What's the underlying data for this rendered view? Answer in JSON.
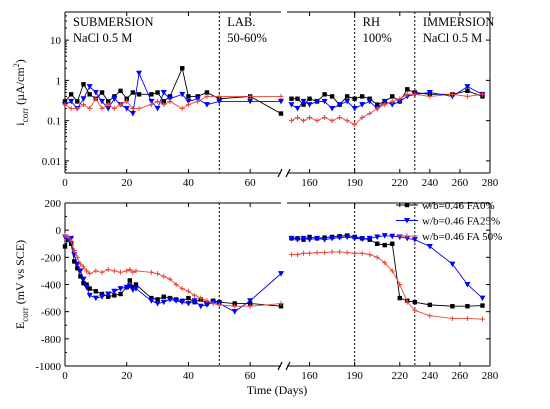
{
  "chart_data": [
    {
      "type": "scatter",
      "panel": "top",
      "ylabel": "i_corr (µA/cm²)",
      "ylabel_main": "i",
      "ylabel_sub": "corr",
      "ylabel_unit": "(µA/cm",
      "ylabel_sup": "2",
      "ylabel_close": ")",
      "yscale": "log",
      "ylim": [
        0.005,
        50
      ],
      "yticks": [
        {
          "value": 0.01,
          "label": "0.01"
        },
        {
          "value": 0.1,
          "label": "0.1"
        },
        {
          "value": 1,
          "label": "1"
        },
        {
          "value": 10,
          "label": "10"
        }
      ],
      "xsegments": [
        {
          "xlim": [
            0,
            70
          ],
          "ticks": [
            0,
            20,
            40,
            60
          ]
        },
        {
          "xlim": [
            145,
            280
          ],
          "ticks": [
            160,
            190,
            220,
            240,
            260,
            280
          ]
        }
      ],
      "xtick_labels": {
        "0": "0",
        "20": "20",
        "40": "40",
        "60": "60",
        "160": "160",
        "190": "190",
        "220": "220",
        "240": "240",
        "260": "260",
        "280": "280"
      },
      "phase_boundaries": [
        50,
        190,
        230
      ],
      "phases": [
        {
          "line1": "SUBMERSION",
          "line2": "NaCl 0.5 M"
        },
        {
          "line1": "LAB.",
          "line2": "50-60%"
        },
        {
          "line1": "RH",
          "line2": "100%"
        },
        {
          "line1": "IMMERSION",
          "line2": "NaCl 0.5 M"
        }
      ],
      "series": [
        {
          "legend": "w/b=0.46 FA0%",
          "color": "#000000",
          "marker": "square",
          "x": [
            0,
            2,
            4,
            6,
            8,
            10,
            12,
            14,
            16,
            18,
            20,
            22,
            24,
            28,
            30,
            32,
            34,
            38,
            40,
            43,
            46,
            50,
            60,
            70,
            148,
            152,
            156,
            160,
            165,
            170,
            175,
            180,
            185,
            190,
            195,
            200,
            205,
            210,
            215,
            220,
            225,
            230,
            240,
            255,
            265,
            275
          ],
          "y": [
            0.3,
            0.45,
            0.3,
            0.8,
            0.45,
            0.35,
            0.5,
            0.3,
            0.4,
            0.55,
            0.35,
            0.5,
            0.45,
            0.45,
            0.5,
            0.3,
            0.4,
            2.0,
            0.4,
            0.4,
            0.5,
            0.35,
            0.4,
            0.15,
            0.35,
            0.35,
            0.25,
            0.35,
            0.3,
            0.45,
            0.4,
            0.25,
            0.4,
            0.35,
            0.4,
            0.35,
            0.25,
            0.3,
            0.4,
            0.3,
            0.6,
            0.5,
            0.45,
            0.45,
            0.55,
            0.4
          ]
        },
        {
          "legend": "w/b=0.46 FA25%",
          "color": "#0000ff",
          "marker": "triangle-down",
          "x": [
            0,
            2,
            4,
            6,
            8,
            10,
            12,
            14,
            16,
            18,
            20,
            22,
            24,
            28,
            30,
            32,
            34,
            38,
            40,
            43,
            46,
            50,
            60,
            70,
            148,
            152,
            156,
            160,
            165,
            170,
            175,
            180,
            185,
            190,
            195,
            200,
            205,
            210,
            215,
            220,
            225,
            230,
            240,
            255,
            265,
            275
          ],
          "y": [
            0.25,
            0.3,
            0.2,
            0.35,
            0.7,
            0.5,
            0.3,
            0.2,
            0.35,
            0.25,
            0.2,
            0.15,
            1.5,
            0.3,
            0.2,
            0.5,
            0.35,
            0.45,
            0.3,
            0.35,
            0.25,
            0.3,
            0.3,
            0.3,
            0.25,
            0.2,
            0.3,
            0.25,
            0.3,
            0.3,
            0.2,
            0.25,
            0.3,
            0.2,
            0.25,
            0.3,
            0.2,
            0.3,
            0.25,
            0.3,
            0.4,
            0.45,
            0.5,
            0.4,
            0.7,
            0.45
          ]
        },
        {
          "legend": "w/b=0.46 FA 50%",
          "color": "#e8483a",
          "marker": "cross",
          "x": [
            0,
            2,
            4,
            6,
            8,
            10,
            12,
            14,
            16,
            18,
            20,
            22,
            24,
            28,
            30,
            32,
            34,
            38,
            40,
            43,
            46,
            50,
            60,
            70,
            148,
            152,
            156,
            160,
            165,
            170,
            175,
            180,
            185,
            190,
            195,
            200,
            205,
            210,
            215,
            220,
            225,
            230,
            240,
            255,
            265,
            275
          ],
          "y": [
            0.25,
            0.2,
            0.2,
            0.25,
            0.2,
            0.35,
            0.2,
            0.25,
            0.2,
            0.25,
            0.3,
            0.2,
            0.2,
            0.25,
            0.3,
            0.25,
            0.3,
            0.2,
            0.25,
            0.3,
            0.4,
            0.4,
            0.4,
            0.4,
            0.1,
            0.12,
            0.1,
            0.12,
            0.1,
            0.12,
            0.1,
            0.12,
            0.1,
            0.08,
            0.12,
            0.15,
            0.2,
            0.25,
            0.3,
            0.35,
            0.45,
            0.45,
            0.4,
            0.45,
            0.4,
            0.45
          ]
        }
      ]
    },
    {
      "type": "line",
      "panel": "bottom",
      "ylabel": "E_corr (mV vs SCE)",
      "ylabel_main": "E",
      "ylabel_sub": "corr",
      "ylabel_unit": "(mV vs  SCE)",
      "ylim": [
        -1000,
        200
      ],
      "yticks": [
        {
          "value": 200,
          "label": "200"
        },
        {
          "value": 0,
          "label": "0"
        },
        {
          "value": -200,
          "label": "-200"
        },
        {
          "value": -400,
          "label": "-400"
        },
        {
          "value": -600,
          "label": "-600"
        },
        {
          "value": -800,
          "label": "-800"
        },
        {
          "value": -1000,
          "label": "-1000"
        }
      ],
      "xlabel": "Time (Days)",
      "xsegments": [
        {
          "xlim": [
            0,
            70
          ],
          "ticks": [
            0,
            20,
            40,
            60
          ]
        },
        {
          "xlim": [
            145,
            280
          ],
          "ticks": [
            160,
            190,
            220,
            240,
            260,
            280
          ]
        }
      ],
      "xtick_labels": {
        "0": "0",
        "20": "20",
        "40": "40",
        "60": "60",
        "160": "160",
        "190": "190",
        "220": "220",
        "240": "240",
        "260": "260",
        "280": "280"
      },
      "phase_boundaries": [
        50,
        190,
        230
      ],
      "legend_position": "top-right",
      "series": [
        {
          "name": "w/b=0.46 FA0%",
          "color": "#000000",
          "marker": "square",
          "x": [
            0,
            1,
            2,
            3,
            4,
            5,
            6,
            7,
            8,
            10,
            12,
            14,
            16,
            18,
            20,
            21,
            22,
            23,
            28,
            30,
            32,
            34,
            36,
            38,
            40,
            42,
            44,
            46,
            48,
            50,
            55,
            60,
            70,
            148,
            152,
            156,
            160,
            165,
            170,
            175,
            180,
            185,
            190,
            195,
            200,
            205,
            210,
            215,
            220,
            225,
            230,
            240,
            255,
            265,
            275
          ],
          "y": [
            -120,
            -70,
            -100,
            -230,
            -280,
            -340,
            -390,
            -400,
            -430,
            -450,
            -470,
            -490,
            -480,
            -470,
            -420,
            -370,
            -420,
            -400,
            -500,
            -510,
            -490,
            -500,
            -510,
            -520,
            -500,
            -530,
            -510,
            -540,
            -520,
            -530,
            -540,
            -540,
            -560,
            -60,
            -60,
            -70,
            -50,
            -60,
            -55,
            -50,
            -45,
            -40,
            -50,
            -60,
            -70,
            -100,
            -110,
            -100,
            -500,
            -520,
            -530,
            -550,
            -560,
            -560,
            -555
          ]
        },
        {
          "name": "w/b=0.46 FA25%",
          "color": "#0000ff",
          "marker": "triangle-down",
          "x": [
            0,
            1,
            2,
            3,
            4,
            5,
            6,
            7,
            8,
            10,
            12,
            14,
            16,
            18,
            20,
            21,
            22,
            23,
            28,
            30,
            32,
            34,
            36,
            38,
            40,
            42,
            44,
            46,
            48,
            50,
            55,
            60,
            70,
            148,
            152,
            156,
            160,
            165,
            170,
            175,
            180,
            185,
            190,
            195,
            200,
            205,
            210,
            215,
            220,
            225,
            230,
            240,
            255,
            265,
            275
          ],
          "y": [
            -50,
            -70,
            -60,
            -180,
            -250,
            -300,
            -360,
            -420,
            -480,
            -500,
            -490,
            -470,
            -450,
            -430,
            -420,
            -410,
            -440,
            -430,
            -520,
            -540,
            -530,
            -510,
            -520,
            -530,
            -540,
            -520,
            -560,
            -550,
            -530,
            -540,
            -600,
            -520,
            -320,
            -60,
            -70,
            -60,
            -70,
            -60,
            -70,
            -60,
            -55,
            -50,
            -60,
            -65,
            -60,
            -50,
            -40,
            -45,
            -50,
            -60,
            -70,
            -120,
            -250,
            -400,
            -500
          ]
        },
        {
          "name": "w/b=0.46 FA 50%",
          "color": "#e8483a",
          "marker": "cross",
          "x": [
            0,
            1,
            2,
            3,
            4,
            5,
            6,
            7,
            8,
            10,
            12,
            14,
            16,
            18,
            20,
            21,
            22,
            23,
            28,
            30,
            32,
            34,
            36,
            38,
            40,
            42,
            44,
            46,
            48,
            50,
            55,
            60,
            70,
            148,
            152,
            156,
            160,
            165,
            170,
            175,
            180,
            185,
            190,
            195,
            200,
            205,
            210,
            215,
            220,
            225,
            230,
            240,
            255,
            265,
            275
          ],
          "y": [
            -40,
            -50,
            -80,
            -150,
            -200,
            -250,
            -270,
            -300,
            -320,
            -300,
            -310,
            -290,
            -300,
            -310,
            -300,
            -290,
            -310,
            -300,
            -310,
            -320,
            -340,
            -360,
            -400,
            -430,
            -450,
            -480,
            -500,
            -520,
            -540,
            -550,
            -560,
            -560,
            -540,
            -180,
            -180,
            -170,
            -170,
            -165,
            -165,
            -160,
            -160,
            -165,
            -170,
            -170,
            -180,
            -200,
            -240,
            -300,
            -400,
            -530,
            -590,
            -630,
            -650,
            -650,
            -655
          ]
        }
      ]
    }
  ]
}
